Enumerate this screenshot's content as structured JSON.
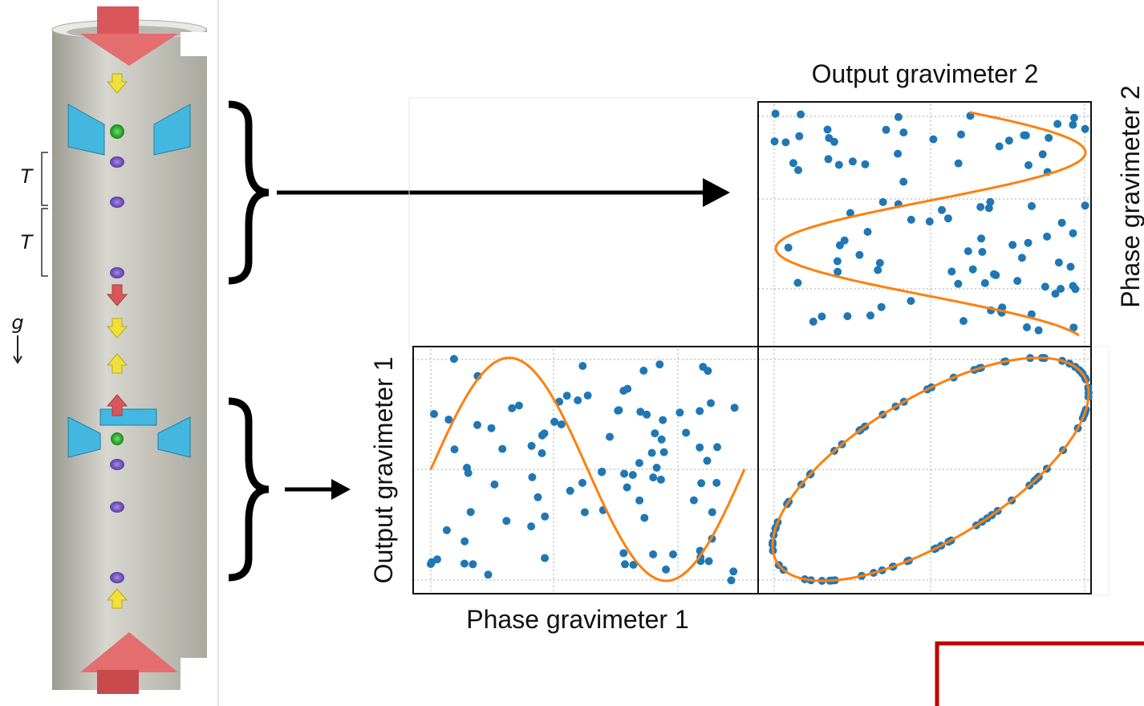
{
  "column": {
    "interval_labels": [
      "T",
      "T"
    ],
    "gravity_label": "g"
  },
  "plots": {
    "top_right": {
      "title": "Output gravimeter 2",
      "side_label": "Phase gravimeter 2"
    },
    "bottom_left": {
      "side_label": "Output gravimeter 1",
      "bottom_label": "Phase gravimeter 1"
    }
  }
}
